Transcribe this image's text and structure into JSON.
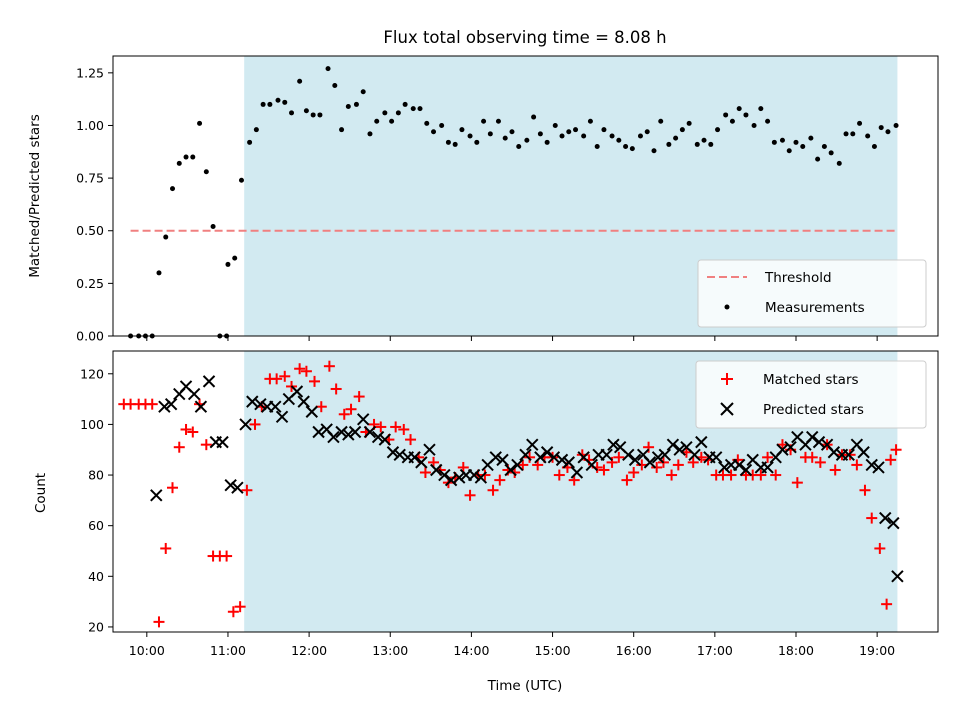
{
  "title": "Flux total observing time = 8.08 h",
  "colors": {
    "shade": "#add8e6",
    "threshold": "#f08080",
    "measurement": "#000000",
    "matched": "#ff0000",
    "predicted": "#000000"
  },
  "chart_data": [
    {
      "type": "scatter",
      "title": "Flux total observing time = 8.08 h",
      "xlabel": "",
      "ylabel": "Matched/Predicted stars",
      "xlim": [
        "09:35",
        "19:45"
      ],
      "ylim": [
        0,
        1.33
      ],
      "yticks": [
        "0.00",
        "0.25",
        "0.50",
        "0.75",
        "1.00",
        "1.25"
      ],
      "grid": false,
      "legend_position": "lower-right",
      "shaded_span": {
        "start": "11:12",
        "end": "19:15"
      },
      "series": [
        {
          "name": "Threshold",
          "kind": "dashed-line",
          "x": [
            "09:48",
            "19:15"
          ],
          "y": [
            0.5,
            0.5
          ]
        },
        {
          "name": "Measurements",
          "kind": "points",
          "x": [
            "09:48",
            "09:54",
            "09:59",
            "10:04",
            "10:09",
            "10:14",
            "10:19",
            "10:24",
            "10:29",
            "10:34",
            "10:39",
            "10:44",
            "10:49",
            "10:54",
            "10:59",
            "11:00",
            "11:05",
            "11:10",
            "11:16",
            "11:21",
            "11:26",
            "11:31",
            "11:37",
            "11:42",
            "11:47",
            "11:53",
            "11:58",
            "12:03",
            "12:08",
            "12:14",
            "12:19",
            "12:24",
            "12:29",
            "12:35",
            "12:40",
            "12:45",
            "12:50",
            "12:56",
            "13:01",
            "13:06",
            "13:11",
            "13:17",
            "13:22",
            "13:27",
            "13:32",
            "13:38",
            "13:43",
            "13:48",
            "13:53",
            "13:59",
            "14:04",
            "14:09",
            "14:14",
            "14:20",
            "14:25",
            "14:30",
            "14:35",
            "14:41",
            "14:46",
            "14:51",
            "14:56",
            "15:02",
            "15:07",
            "15:12",
            "15:17",
            "15:23",
            "15:28",
            "15:33",
            "15:38",
            "15:44",
            "15:49",
            "15:54",
            "15:59",
            "16:05",
            "16:10",
            "16:15",
            "16:20",
            "16:26",
            "16:31",
            "16:36",
            "16:41",
            "16:47",
            "16:52",
            "16:57",
            "17:02",
            "17:08",
            "17:13",
            "17:18",
            "17:23",
            "17:29",
            "17:34",
            "17:39",
            "17:44",
            "17:50",
            "17:55",
            "18:00",
            "18:05",
            "18:11",
            "18:16",
            "18:21",
            "18:26",
            "18:32",
            "18:37",
            "18:42",
            "18:47",
            "18:53",
            "18:58",
            "19:03",
            "19:08",
            "19:14"
          ],
          "y": [
            0,
            0,
            0,
            0,
            0.3,
            0.47,
            0.7,
            0.82,
            0.85,
            0.85,
            1.01,
            0.78,
            0.52,
            0,
            0,
            0.34,
            0.37,
            0.74,
            0.92,
            0.98,
            1.1,
            1.1,
            1.12,
            1.11,
            1.06,
            1.21,
            1.07,
            1.05,
            1.05,
            1.27,
            1.19,
            0.98,
            1.09,
            1.1,
            1.16,
            0.96,
            1.02,
            1.06,
            1.02,
            1.06,
            1.1,
            1.08,
            1.08,
            1.01,
            0.97,
            1.0,
            0.92,
            0.91,
            0.98,
            0.95,
            0.92,
            1.02,
            0.96,
            1.02,
            0.94,
            0.97,
            0.9,
            0.93,
            1.04,
            0.96,
            0.92,
            1.0,
            0.95,
            0.97,
            0.98,
            0.95,
            1.02,
            0.9,
            0.98,
            0.95,
            0.93,
            0.9,
            0.89,
            0.95,
            0.97,
            0.88,
            1.02,
            0.91,
            0.94,
            0.98,
            1.01,
            0.91,
            0.93,
            0.91,
            0.98,
            1.05,
            1.02,
            1.08,
            1.05,
            1.0,
            1.08,
            1.02,
            0.92,
            0.93,
            0.88,
            0.92,
            0.9,
            0.94,
            0.84,
            0.9,
            0.87,
            0.82,
            0.96,
            0.96,
            1.01,
            0.95,
            0.9,
            0.99,
            0.97,
            1.0
          ]
        }
      ]
    },
    {
      "type": "scatter",
      "xlabel": "Time (UTC)",
      "ylabel": "Count",
      "xticks": [
        "10:00",
        "11:00",
        "12:00",
        "13:00",
        "14:00",
        "15:00",
        "16:00",
        "17:00",
        "18:00",
        "19:00"
      ],
      "xlim": [
        "09:35",
        "19:45"
      ],
      "ylim": [
        18,
        129
      ],
      "yticks": [
        "20",
        "40",
        "60",
        "80",
        "100",
        "120"
      ],
      "grid": false,
      "legend_position": "upper-right",
      "shaded_span": {
        "start": "11:12",
        "end": "19:15"
      },
      "series": [
        {
          "name": "Matched stars",
          "marker": "+",
          "x": [
            "09:43",
            "09:48",
            "09:54",
            "09:59",
            "10:04",
            "10:09",
            "10:14",
            "10:19",
            "10:24",
            "10:29",
            "10:34",
            "10:39",
            "10:44",
            "10:49",
            "10:54",
            "10:59",
            "11:04",
            "11:09",
            "11:14",
            "11:20",
            "11:25",
            "11:31",
            "11:36",
            "11:42",
            "11:47",
            "11:53",
            "11:58",
            "12:04",
            "12:09",
            "12:15",
            "12:20",
            "12:26",
            "12:31",
            "12:37",
            "12:42",
            "12:48",
            "12:53",
            "12:59",
            "13:04",
            "13:10",
            "13:15",
            "13:21",
            "13:26",
            "13:32",
            "13:37",
            "13:43",
            "13:48",
            "13:54",
            "13:59",
            "14:05",
            "14:10",
            "14:16",
            "14:21",
            "14:27",
            "14:32",
            "14:38",
            "14:43",
            "14:49",
            "14:54",
            "15:00",
            "15:05",
            "15:11",
            "15:16",
            "15:22",
            "15:27",
            "15:33",
            "15:38",
            "15:44",
            "15:49",
            "15:55",
            "16:00",
            "16:06",
            "16:11",
            "16:17",
            "16:22",
            "16:28",
            "16:33",
            "16:39",
            "16:44",
            "16:50",
            "16:55",
            "17:01",
            "17:06",
            "17:12",
            "17:17",
            "17:23",
            "17:28",
            "17:34",
            "17:39",
            "17:45",
            "17:50",
            "17:56",
            "18:01",
            "18:07",
            "18:12",
            "18:18",
            "18:23",
            "18:29",
            "18:34",
            "18:40",
            "18:45",
            "18:51",
            "18:56",
            "19:02",
            "19:07",
            "19:10",
            "19:14"
          ],
          "y": [
            108,
            108,
            108,
            108,
            108,
            22,
            51,
            75,
            91,
            98,
            97,
            108,
            92,
            48,
            48,
            48,
            26,
            28,
            74,
            100,
            107,
            118,
            118,
            119,
            115,
            122,
            121,
            117,
            107,
            123,
            114,
            104,
            106,
            111,
            97,
            100,
            99,
            94,
            99,
            98,
            94,
            87,
            81,
            85,
            82,
            77,
            79,
            83,
            72,
            80,
            80,
            74,
            78,
            82,
            81,
            84,
            87,
            84,
            87,
            87,
            80,
            83,
            78,
            88,
            86,
            83,
            82,
            85,
            87,
            78,
            81,
            84,
            91,
            83,
            85,
            80,
            84,
            89,
            85,
            87,
            86,
            80,
            80,
            80,
            86,
            80,
            80,
            80,
            87,
            80,
            92,
            90,
            77,
            87,
            87,
            85,
            92,
            82,
            88,
            88,
            84,
            74,
            63,
            51,
            29,
            86,
            90
          ]
        },
        {
          "name": "Predicted stars",
          "marker": "x",
          "x": [
            "10:07",
            "10:13",
            "10:18",
            "10:24",
            "10:29",
            "10:35",
            "10:40",
            "10:46",
            "10:51",
            "10:56",
            "11:02",
            "11:07",
            "11:13",
            "11:18",
            "11:24",
            "11:29",
            "11:35",
            "11:40",
            "11:45",
            "11:51",
            "11:56",
            "12:02",
            "12:07",
            "12:13",
            "12:18",
            "12:24",
            "12:29",
            "12:34",
            "12:40",
            "12:45",
            "12:51",
            "12:56",
            "13:02",
            "13:07",
            "13:13",
            "13:18",
            "13:23",
            "13:29",
            "13:34",
            "13:40",
            "13:45",
            "13:51",
            "13:56",
            "14:02",
            "14:07",
            "14:12",
            "14:18",
            "14:23",
            "14:29",
            "14:34",
            "14:40",
            "14:45",
            "14:51",
            "14:56",
            "15:01",
            "15:07",
            "15:12",
            "15:18",
            "15:23",
            "15:29",
            "15:34",
            "15:40",
            "15:45",
            "15:50",
            "15:56",
            "16:01",
            "16:07",
            "16:12",
            "16:18",
            "16:23",
            "16:29",
            "16:34",
            "16:39",
            "16:45",
            "16:50",
            "16:56",
            "17:01",
            "17:07",
            "17:12",
            "17:18",
            "17:23",
            "17:28",
            "17:34",
            "17:39",
            "17:45",
            "17:50",
            "17:56",
            "18:01",
            "18:07",
            "18:12",
            "18:17",
            "18:23",
            "18:28",
            "18:34",
            "18:39",
            "18:45",
            "18:50",
            "18:56",
            "19:01",
            "19:06",
            "19:12",
            "19:15"
          ],
          "y": [
            72,
            107,
            108,
            112,
            115,
            112,
            107,
            117,
            93,
            93,
            76,
            75,
            100,
            109,
            108,
            107,
            107,
            103,
            110,
            113,
            109,
            105,
            97,
            98,
            95,
            97,
            96,
            97,
            102,
            97,
            95,
            94,
            89,
            88,
            87,
            87,
            85,
            90,
            82,
            80,
            78,
            79,
            80,
            80,
            79,
            84,
            87,
            86,
            82,
            84,
            88,
            92,
            87,
            89,
            87,
            86,
            85,
            81,
            87,
            84,
            88,
            88,
            92,
            91,
            88,
            86,
            88,
            85,
            87,
            88,
            92,
            90,
            91,
            88,
            93,
            87,
            87,
            83,
            84,
            84,
            82,
            86,
            83,
            83,
            87,
            90,
            91,
            95,
            92,
            95,
            93,
            92,
            89,
            88,
            88,
            92,
            89,
            84,
            83,
            63,
            61,
            40
          ]
        }
      ]
    }
  ]
}
